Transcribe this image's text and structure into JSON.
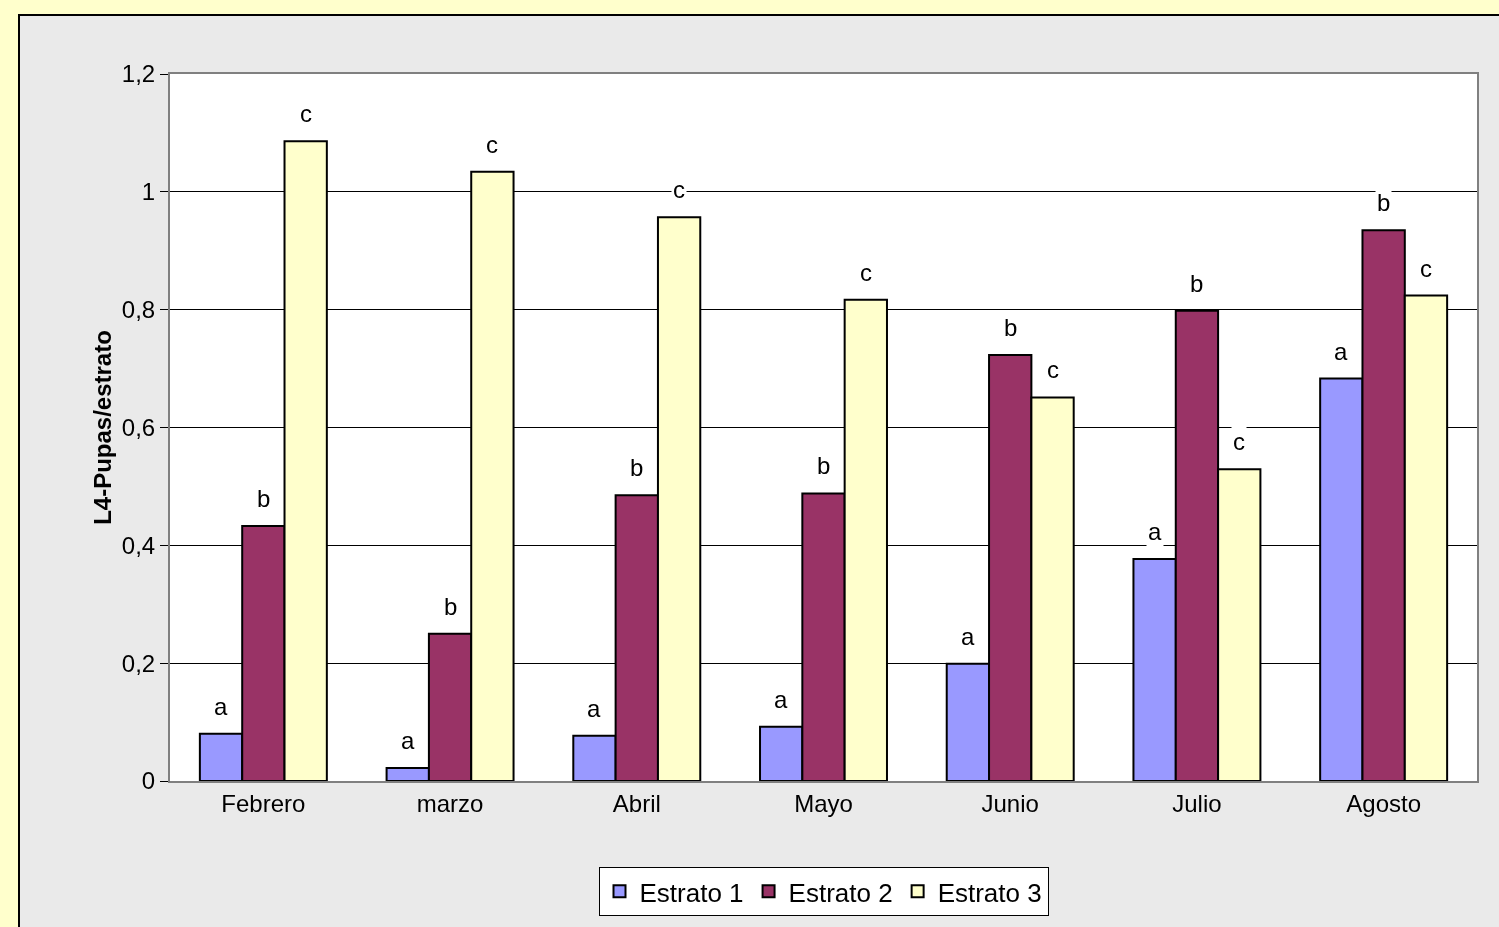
{
  "chart_data": {
    "type": "bar",
    "ylabel": "L4-Pupas/estrato",
    "categories": [
      "Febrero",
      "marzo",
      "Abril",
      "Mayo",
      "Junio",
      "Julio",
      "Agosto"
    ],
    "series": [
      {
        "name": "Estrato 1",
        "color": "#9999ff",
        "values": [
          0.08,
          0.022,
          0.077,
          0.092,
          0.199,
          0.377,
          0.683
        ],
        "value_labels": [
          "a",
          "a",
          "a",
          "a",
          "a",
          "a",
          "a"
        ]
      },
      {
        "name": "Estrato 2",
        "color": "#993366",
        "values": [
          0.433,
          0.25,
          0.485,
          0.488,
          0.723,
          0.798,
          0.935
        ],
        "value_labels": [
          "b",
          "b",
          "b",
          "b",
          "b",
          "b",
          "b"
        ]
      },
      {
        "name": "Estrato 3",
        "color": "#ffffcc",
        "values": [
          1.086,
          1.034,
          0.957,
          0.817,
          0.651,
          0.529,
          0.824
        ],
        "value_labels": [
          "c",
          "c",
          "c",
          "c",
          "c",
          "c",
          "c"
        ]
      }
    ],
    "ylim": [
      0,
      1.2
    ],
    "yticks": [
      0,
      {
        "value": 0.2,
        "label": "0,2"
      },
      {
        "value": 0.4,
        "label": "0,4"
      },
      {
        "value": 0.6,
        "label": "0,6"
      },
      {
        "value": 0.8,
        "label": "0,8"
      },
      1,
      {
        "value": 1.2,
        "label": "1,2"
      }
    ],
    "grid": "y",
    "legend": "bottom"
  }
}
